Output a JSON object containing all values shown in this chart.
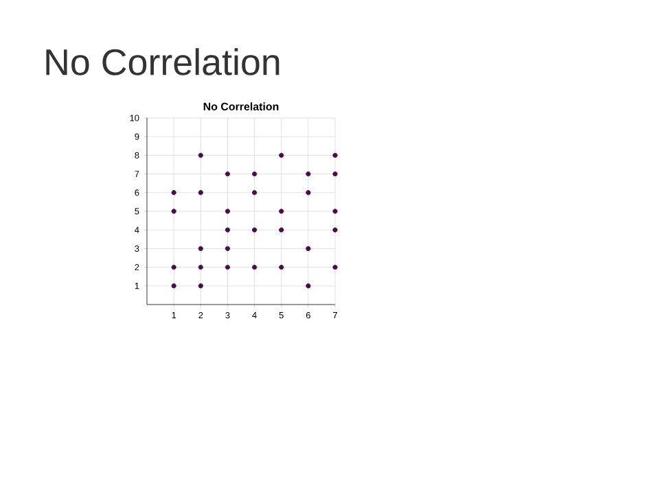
{
  "chart_data": {
    "type": "scatter",
    "title": "No Correlation",
    "subtitle": "No Correlation",
    "x": [
      1,
      1,
      1,
      1,
      2,
      2,
      2,
      2,
      2,
      3,
      3,
      3,
      3,
      3,
      4,
      4,
      4,
      4,
      5,
      5,
      5,
      5,
      6,
      6,
      6,
      6,
      7,
      7,
      7,
      7,
      7
    ],
    "values": [
      1,
      2,
      5,
      6,
      1,
      2,
      3,
      6,
      8,
      2,
      3,
      4,
      5,
      7,
      2,
      4,
      6,
      7,
      2,
      4,
      5,
      8,
      1,
      3,
      6,
      7,
      2,
      4,
      5,
      7,
      8
    ],
    "color": "#4b0b4b",
    "xlim": [
      0,
      7
    ],
    "ylim": [
      0,
      10
    ],
    "xticks": [
      1,
      2,
      3,
      4,
      5,
      6,
      7
    ],
    "yticks": [
      1,
      2,
      3,
      4,
      5,
      6,
      7,
      8,
      9,
      10
    ],
    "grid": true
  }
}
